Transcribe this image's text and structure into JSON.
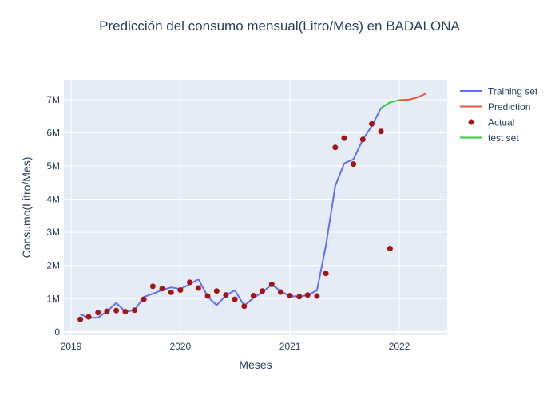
{
  "chart_data": {
    "type": "line",
    "title": "Predicción del consumo mensual(Litro/Mes) en BADALONA",
    "xlabel": "Meses",
    "ylabel": "Consumo(Litro/Mes)",
    "x_range": [
      "2018-12-08",
      "2022-06-10"
    ],
    "ylim": [
      -100000,
      7600000
    ],
    "x_ticks": [
      {
        "date": "2019-01-01",
        "label": "2019"
      },
      {
        "date": "2020-01-01",
        "label": "2020"
      },
      {
        "date": "2021-01-01",
        "label": "2021"
      },
      {
        "date": "2022-01-01",
        "label": "2022"
      }
    ],
    "y_ticks": [
      {
        "value": 0,
        "label": "0"
      },
      {
        "value": 1000000,
        "label": "1M"
      },
      {
        "value": 2000000,
        "label": "2M"
      },
      {
        "value": 3000000,
        "label": "3M"
      },
      {
        "value": 4000000,
        "label": "4M"
      },
      {
        "value": 5000000,
        "label": "5M"
      },
      {
        "value": 6000000,
        "label": "6M"
      },
      {
        "value": 7000000,
        "label": "7M"
      }
    ],
    "grid": true,
    "legend_position": "top-right",
    "series": [
      {
        "name": "Training set",
        "mode": "lines",
        "color": "#636efa",
        "points": [
          [
            "2019-02-01",
            530000
          ],
          [
            "2019-03-01",
            420000
          ],
          [
            "2019-04-01",
            430000
          ],
          [
            "2019-05-01",
            620000
          ],
          [
            "2019-06-01",
            870000
          ],
          [
            "2019-07-01",
            610000
          ],
          [
            "2019-08-01",
            650000
          ],
          [
            "2019-09-01",
            1050000
          ],
          [
            "2019-10-01",
            1150000
          ],
          [
            "2019-11-01",
            1260000
          ],
          [
            "2019-12-01",
            1340000
          ],
          [
            "2020-01-01",
            1290000
          ],
          [
            "2020-02-01",
            1430000
          ],
          [
            "2020-03-01",
            1590000
          ],
          [
            "2020-04-01",
            1070000
          ],
          [
            "2020-05-01",
            800000
          ],
          [
            "2020-06-01",
            1100000
          ],
          [
            "2020-07-01",
            1250000
          ],
          [
            "2020-08-01",
            790000
          ],
          [
            "2020-09-01",
            1020000
          ],
          [
            "2020-10-01",
            1200000
          ],
          [
            "2020-11-01",
            1420000
          ],
          [
            "2020-12-01",
            1230000
          ],
          [
            "2021-01-01",
            1070000
          ],
          [
            "2021-02-01",
            1070000
          ],
          [
            "2021-03-01",
            1100000
          ],
          [
            "2021-04-01",
            1250000
          ],
          [
            "2021-05-01",
            2600000
          ],
          [
            "2021-06-01",
            4400000
          ],
          [
            "2021-07-01",
            5080000
          ],
          [
            "2021-08-01",
            5200000
          ],
          [
            "2021-09-01",
            5800000
          ],
          [
            "2021-10-01",
            6200000
          ],
          [
            "2021-11-01",
            6750000
          ]
        ]
      },
      {
        "name": "Prediction",
        "mode": "lines",
        "color": "#ef553b",
        "points": [
          [
            "2022-01-01",
            6990000
          ],
          [
            "2022-02-01",
            7000000
          ],
          [
            "2022-03-01",
            7060000
          ],
          [
            "2022-04-01",
            7190000
          ]
        ]
      },
      {
        "name": "Actual",
        "mode": "markers",
        "color": "#a31515",
        "points": [
          [
            "2019-02-01",
            380000
          ],
          [
            "2019-03-01",
            450000
          ],
          [
            "2019-04-01",
            580000
          ],
          [
            "2019-05-01",
            620000
          ],
          [
            "2019-06-01",
            640000
          ],
          [
            "2019-07-01",
            610000
          ],
          [
            "2019-08-01",
            650000
          ],
          [
            "2019-09-01",
            980000
          ],
          [
            "2019-10-01",
            1370000
          ],
          [
            "2019-11-01",
            1300000
          ],
          [
            "2019-12-01",
            1190000
          ],
          [
            "2020-01-01",
            1260000
          ],
          [
            "2020-02-01",
            1490000
          ],
          [
            "2020-03-01",
            1320000
          ],
          [
            "2020-04-01",
            1080000
          ],
          [
            "2020-05-01",
            1230000
          ],
          [
            "2020-06-01",
            1110000
          ],
          [
            "2020-07-01",
            980000
          ],
          [
            "2020-08-01",
            770000
          ],
          [
            "2020-09-01",
            1090000
          ],
          [
            "2020-10-01",
            1230000
          ],
          [
            "2020-11-01",
            1430000
          ],
          [
            "2020-12-01",
            1200000
          ],
          [
            "2021-01-01",
            1090000
          ],
          [
            "2021-02-01",
            1060000
          ],
          [
            "2021-03-01",
            1110000
          ],
          [
            "2021-04-01",
            1080000
          ],
          [
            "2021-05-01",
            1760000
          ],
          [
            "2021-06-01",
            5560000
          ],
          [
            "2021-07-01",
            5840000
          ],
          [
            "2021-08-01",
            5060000
          ],
          [
            "2021-09-01",
            5800000
          ],
          [
            "2021-10-01",
            6270000
          ],
          [
            "2021-11-01",
            6040000
          ],
          [
            "2021-12-01",
            2510000
          ]
        ]
      },
      {
        "name": "test set",
        "mode": "lines",
        "color": "#2ecc40",
        "points": [
          [
            "2021-11-01",
            6750000
          ],
          [
            "2021-12-01",
            6920000
          ],
          [
            "2022-01-01",
            6990000
          ]
        ]
      }
    ]
  }
}
